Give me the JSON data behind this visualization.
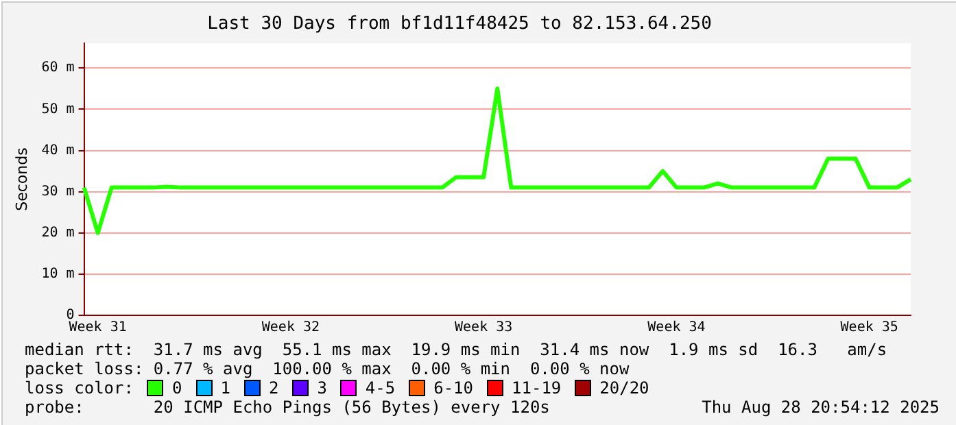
{
  "chart_data": {
    "type": "line",
    "title": "Last 30 Days from bf1d11f48425 to 82.153.64.250",
    "ylabel": "Seconds",
    "legend_title": "loss color:",
    "legend": "bottom",
    "grid": "y",
    "marker": "none",
    "line_style": "solid",
    "categories": [
      null,
      "Week 31",
      null,
      null,
      null,
      null,
      null,
      null,
      null,
      null,
      null,
      null,
      null,
      null,
      null,
      "Week 32",
      null,
      null,
      null,
      null,
      null,
      null,
      null,
      null,
      null,
      null,
      null,
      null,
      null,
      "Week 33",
      null,
      null,
      null,
      null,
      null,
      null,
      null,
      null,
      null,
      null,
      null,
      null,
      null,
      "Week 34",
      null,
      null,
      null,
      null,
      null,
      null,
      null,
      null,
      null,
      null,
      null,
      null,
      null,
      "Week 35",
      null,
      null,
      null
    ],
    "ylim": [
      0,
      66
    ],
    "yticks": [
      0,
      {
        "value": 10,
        "label": "10 m"
      },
      {
        "value": 20,
        "label": "20 m"
      },
      {
        "value": 30,
        "label": "30 m"
      },
      {
        "value": 40,
        "label": "40 m"
      },
      {
        "value": 50,
        "label": "50 m"
      },
      {
        "value": 60,
        "label": "60 m"
      }
    ],
    "series": [
      {
        "name": "0",
        "color": "#26ff00",
        "values": [
          31,
          20,
          31,
          31,
          31,
          31,
          31.2,
          31,
          31,
          31,
          31,
          31,
          31,
          31,
          31,
          31,
          31,
          31,
          31,
          31,
          31,
          31,
          31,
          31,
          31,
          31,
          31,
          33.5,
          33.5,
          33.5,
          55,
          31,
          31,
          31,
          31,
          31,
          31,
          31,
          31,
          31,
          31,
          31,
          35,
          31,
          31,
          31,
          32,
          31,
          31,
          31,
          31,
          31,
          31,
          31,
          38,
          38,
          38,
          31,
          31,
          31,
          33
        ]
      },
      {
        "name": "1",
        "color": "#00b8ff",
        "values": [
          null,
          null,
          null,
          null,
          null,
          null,
          null,
          null,
          null,
          null,
          null,
          null,
          null,
          null,
          null,
          null,
          null,
          null,
          null,
          null,
          null,
          null,
          null,
          null,
          null,
          null,
          null,
          null,
          null,
          null,
          null,
          null,
          null,
          null,
          null,
          null,
          null,
          null,
          null,
          null,
          null,
          null,
          null,
          null,
          null,
          null,
          null,
          null,
          null,
          null,
          null,
          null,
          null,
          null,
          null,
          null,
          null,
          null,
          null,
          null,
          null
        ]
      },
      {
        "name": "2",
        "color": "#0059ff",
        "values": [
          null,
          null,
          null,
          null,
          null,
          null,
          null,
          null,
          null,
          null,
          null,
          null,
          null,
          null,
          null,
          null,
          null,
          null,
          null,
          null,
          null,
          null,
          null,
          null,
          null,
          null,
          null,
          null,
          null,
          null,
          null,
          null,
          null,
          null,
          null,
          null,
          null,
          null,
          null,
          null,
          null,
          null,
          null,
          null,
          null,
          null,
          null,
          null,
          null,
          null,
          null,
          null,
          null,
          null,
          null,
          null,
          null,
          null,
          null,
          null,
          null
        ]
      },
      {
        "name": "3",
        "color": "#5e00ff",
        "values": [
          null,
          null,
          null,
          null,
          null,
          null,
          null,
          null,
          null,
          null,
          null,
          null,
          null,
          null,
          null,
          null,
          null,
          null,
          null,
          null,
          null,
          null,
          null,
          null,
          null,
          null,
          null,
          null,
          null,
          null,
          null,
          null,
          null,
          null,
          null,
          null,
          null,
          null,
          null,
          null,
          null,
          null,
          null,
          null,
          null,
          null,
          null,
          null,
          null,
          null,
          null,
          null,
          null,
          null,
          null,
          null,
          null,
          null,
          null,
          null,
          null
        ]
      },
      {
        "name": "4-5",
        "color": "#ff00ff",
        "values": [
          null,
          null,
          null,
          null,
          null,
          null,
          null,
          null,
          null,
          null,
          null,
          null,
          null,
          null,
          null,
          null,
          null,
          null,
          null,
          null,
          null,
          null,
          null,
          null,
          null,
          null,
          null,
          null,
          null,
          null,
          null,
          null,
          null,
          null,
          null,
          null,
          null,
          null,
          null,
          null,
          null,
          null,
          null,
          null,
          null,
          null,
          null,
          null,
          null,
          null,
          null,
          null,
          null,
          null,
          null,
          null,
          null,
          null,
          null,
          null,
          null
        ]
      },
      {
        "name": "6-10",
        "color": "#ff5e00",
        "values": [
          null,
          null,
          null,
          null,
          null,
          null,
          null,
          null,
          null,
          null,
          null,
          null,
          null,
          null,
          null,
          null,
          null,
          null,
          null,
          null,
          null,
          null,
          null,
          null,
          null,
          null,
          null,
          null,
          null,
          null,
          null,
          null,
          null,
          null,
          null,
          null,
          null,
          null,
          null,
          null,
          null,
          null,
          null,
          null,
          null,
          null,
          null,
          null,
          null,
          null,
          null,
          null,
          null,
          null,
          null,
          null,
          null,
          null,
          null,
          null,
          null
        ]
      },
      {
        "name": "11-19",
        "color": "#ff0000",
        "values": [
          null,
          null,
          null,
          null,
          null,
          null,
          null,
          null,
          null,
          null,
          null,
          null,
          null,
          null,
          null,
          null,
          null,
          null,
          null,
          null,
          null,
          null,
          null,
          null,
          null,
          null,
          null,
          null,
          null,
          null,
          null,
          null,
          null,
          null,
          null,
          null,
          null,
          null,
          null,
          null,
          null,
          null,
          null,
          null,
          null,
          null,
          null,
          null,
          null,
          null,
          null,
          null,
          null,
          null,
          null,
          null,
          null,
          null,
          null,
          null,
          null
        ]
      },
      {
        "name": "20/20",
        "color": "#a10000",
        "values": [
          null,
          null,
          null,
          null,
          null,
          null,
          null,
          null,
          null,
          null,
          null,
          null,
          null,
          null,
          null,
          null,
          null,
          null,
          null,
          null,
          null,
          null,
          null,
          null,
          null,
          null,
          null,
          null,
          null,
          null,
          null,
          null,
          null,
          null,
          null,
          null,
          null,
          null,
          null,
          null,
          null,
          null,
          null,
          null,
          null,
          null,
          null,
          null,
          null,
          null,
          null,
          null,
          null,
          null,
          null,
          null,
          null,
          null,
          null,
          null,
          null
        ]
      }
    ],
    "annotations": [
      "median rtt:  31.7 ms avg  55.1 ms max  19.9 ms min  31.4 ms now  1.9 ms sd  16.3   am/s",
      "packet loss: 0.77 % avg  100.00 % max  0.00 % min  0.00 % now",
      "probe:       20 ICMP Echo Pings (56 Bytes) every 120s",
      "Thu Aug 28 20:54:12 2025"
    ]
  }
}
